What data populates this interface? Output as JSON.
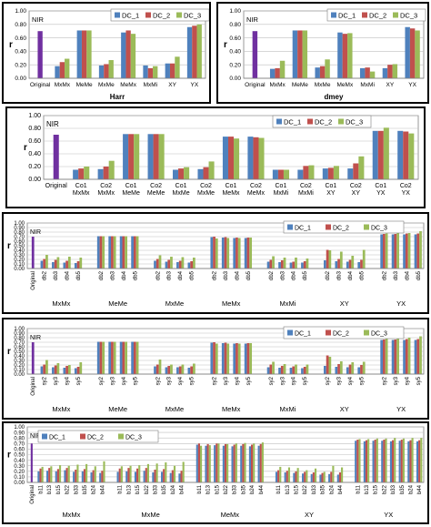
{
  "colors": {
    "original": "#7030a0",
    "DC_1": "#4f81bd",
    "DC_2": "#c0504d",
    "DC_3": "#9bbb59"
  },
  "chart_data": [
    {
      "type": "bar",
      "tag": "NIR",
      "xlabel": "Harr",
      "ylabel": "r",
      "ylim": [
        0,
        1
      ],
      "yticks": [
        "0.00",
        "0.20",
        "0.40",
        "0.60",
        "0.80",
        "1.00"
      ],
      "legend": "top-right",
      "original": {
        "label": "Original",
        "value": 0.7
      },
      "categories": [
        {
          "label": "MxMx"
        },
        {
          "label": "MeMe"
        },
        {
          "label": "MxMe"
        },
        {
          "label": "MeMx"
        },
        {
          "label": "MxMi"
        },
        {
          "label": "XY"
        },
        {
          "label": "YX"
        }
      ],
      "series": [
        {
          "name": "DC_1",
          "values": [
            0.18,
            0.71,
            0.19,
            0.68,
            0.19,
            0.22,
            0.76
          ]
        },
        {
          "name": "DC_2",
          "values": [
            0.24,
            0.71,
            0.21,
            0.71,
            0.15,
            0.22,
            0.78
          ]
        },
        {
          "name": "DC_3",
          "values": [
            0.29,
            0.71,
            0.27,
            0.66,
            0.18,
            0.32,
            0.8
          ]
        }
      ]
    },
    {
      "type": "bar",
      "tag": "NIR",
      "xlabel": "dmey",
      "ylabel": "r",
      "ylim": [
        0,
        1
      ],
      "yticks": [
        "0.00",
        "0.20",
        "0.40",
        "0.60",
        "0.80",
        "1.00"
      ],
      "legend": "top-right",
      "original": {
        "label": "Original",
        "value": 0.7
      },
      "categories": [
        {
          "label": "MxMx"
        },
        {
          "label": "MeMe"
        },
        {
          "label": "MxMe"
        },
        {
          "label": "MeMx"
        },
        {
          "label": "MxMi"
        },
        {
          "label": "XY"
        },
        {
          "label": "YX"
        }
      ],
      "series": [
        {
          "name": "DC_1",
          "values": [
            0.14,
            0.71,
            0.16,
            0.68,
            0.15,
            0.15,
            0.76
          ]
        },
        {
          "name": "DC_2",
          "values": [
            0.15,
            0.71,
            0.18,
            0.66,
            0.16,
            0.2,
            0.74
          ]
        },
        {
          "name": "DC_3",
          "values": [
            0.26,
            0.71,
            0.28,
            0.67,
            0.1,
            0.21,
            0.71
          ]
        }
      ]
    },
    {
      "type": "bar",
      "tag": "NIR",
      "xlabel": "",
      "ylabel": "r",
      "ylim": [
        0,
        1
      ],
      "yticks": [
        "0.00",
        "0.20",
        "0.40",
        "0.60",
        "0.80",
        "1.00"
      ],
      "legend": "top-right",
      "original": {
        "label": "Original",
        "value": 0.7
      },
      "categories": [
        {
          "label": "Co1 MxMx"
        },
        {
          "label": "Co2 MxMx"
        },
        {
          "label": "Co1 MeMe"
        },
        {
          "label": "Co2 MeMe"
        },
        {
          "label": "Co1 MxMe"
        },
        {
          "label": "Co2 MxMe"
        },
        {
          "label": "Co1 MeMx"
        },
        {
          "label": "Co2 MeMx"
        },
        {
          "label": "Co1 MxMi"
        },
        {
          "label": "Co2 MxMi"
        },
        {
          "label": "Co1 XY"
        },
        {
          "label": "Co2 XY"
        },
        {
          "label": "Co1 YX"
        },
        {
          "label": "Co2 YX"
        }
      ],
      "series": [
        {
          "name": "DC_1",
          "values": [
            0.15,
            0.16,
            0.71,
            0.71,
            0.15,
            0.16,
            0.67,
            0.67,
            0.15,
            0.15,
            0.17,
            0.17,
            0.76,
            0.76
          ]
        },
        {
          "name": "DC_2",
          "values": [
            0.17,
            0.2,
            0.71,
            0.71,
            0.17,
            0.19,
            0.67,
            0.66,
            0.15,
            0.21,
            0.18,
            0.25,
            0.76,
            0.75
          ]
        },
        {
          "name": "DC_3",
          "values": [
            0.2,
            0.29,
            0.71,
            0.71,
            0.19,
            0.28,
            0.64,
            0.65,
            0.15,
            0.22,
            0.21,
            0.36,
            0.81,
            0.72
          ]
        }
      ]
    },
    {
      "type": "bar",
      "tag": "NIR",
      "xlabel": "",
      "ylabel": "r",
      "ylim": [
        0,
        1
      ],
      "yticks": [
        "0.00",
        "0.10",
        "0.20",
        "0.30",
        "0.40",
        "0.50",
        "0.60",
        "0.70",
        "0.80",
        "0.90",
        "1.00"
      ],
      "legend": "top-right",
      "original": {
        "label": "Original",
        "value": 0.7
      },
      "groups": [
        "MxMx",
        "MeMe",
        "MxMe",
        "MeMx",
        "MxMi",
        "XY",
        "YX"
      ],
      "group_sizes": [
        4,
        4,
        4,
        4,
        4,
        4,
        4
      ],
      "categories": [
        {
          "label": "db2"
        },
        {
          "label": "db3"
        },
        {
          "label": "db4"
        },
        {
          "label": "db5"
        },
        {
          "label": "db2"
        },
        {
          "label": "db3"
        },
        {
          "label": "db4"
        },
        {
          "label": "db5"
        },
        {
          "label": "db2"
        },
        {
          "label": "db3"
        },
        {
          "label": "db4"
        },
        {
          "label": "db5"
        },
        {
          "label": "db2"
        },
        {
          "label": "db3"
        },
        {
          "label": "db4"
        },
        {
          "label": "db5"
        },
        {
          "label": "db2"
        },
        {
          "label": "db3"
        },
        {
          "label": "db4"
        },
        {
          "label": "db5"
        },
        {
          "label": "db2"
        },
        {
          "label": "db3"
        },
        {
          "label": "db4"
        },
        {
          "label": "db5"
        },
        {
          "label": "db2"
        },
        {
          "label": "db3"
        },
        {
          "label": "db4"
        },
        {
          "label": "db5"
        }
      ],
      "series": [
        {
          "name": "DC_1",
          "values": [
            0.17,
            0.14,
            0.13,
            0.12,
            0.71,
            0.71,
            0.71,
            0.71,
            0.17,
            0.15,
            0.14,
            0.13,
            0.69,
            0.68,
            0.67,
            0.67,
            0.15,
            0.14,
            0.13,
            0.13,
            0.18,
            0.16,
            0.15,
            0.14,
            0.75,
            0.75,
            0.75,
            0.75
          ]
        },
        {
          "name": "DC_2",
          "values": [
            0.21,
            0.19,
            0.17,
            0.16,
            0.71,
            0.71,
            0.71,
            0.71,
            0.21,
            0.19,
            0.17,
            0.16,
            0.7,
            0.69,
            0.68,
            0.68,
            0.19,
            0.18,
            0.15,
            0.16,
            0.41,
            0.21,
            0.19,
            0.19,
            0.76,
            0.76,
            0.77,
            0.77
          ]
        },
        {
          "name": "DC_3",
          "values": [
            0.3,
            0.25,
            0.26,
            0.24,
            0.71,
            0.71,
            0.71,
            0.71,
            0.29,
            0.26,
            0.25,
            0.24,
            0.66,
            0.67,
            0.67,
            0.68,
            0.27,
            0.24,
            0.24,
            0.22,
            0.4,
            0.37,
            0.28,
            0.41,
            0.77,
            0.8,
            0.78,
            0.82
          ]
        }
      ]
    },
    {
      "type": "bar",
      "tag": "NIR",
      "xlabel": "",
      "ylabel": "r",
      "ylim": [
        0,
        1
      ],
      "yticks": [
        "0.00",
        "0.10",
        "0.20",
        "0.30",
        "0.40",
        "0.50",
        "0.60",
        "0.70",
        "0.80",
        "0.90",
        "1.00"
      ],
      "legend": "top-right",
      "original": {
        "label": "Original",
        "value": 0.7
      },
      "groups": [
        "MxMx",
        "MeMe",
        "MxMe",
        "MeMx",
        "MxMi",
        "XY",
        "YX"
      ],
      "group_sizes": [
        4,
        4,
        4,
        4,
        4,
        4,
        4
      ],
      "categories": [
        {
          "label": "sy2"
        },
        {
          "label": "sy3"
        },
        {
          "label": "sy4"
        },
        {
          "label": "sy5"
        },
        {
          "label": "sy2"
        },
        {
          "label": "sy3"
        },
        {
          "label": "sy4"
        },
        {
          "label": "sy5"
        },
        {
          "label": "sy2"
        },
        {
          "label": "sy3"
        },
        {
          "label": "sy4"
        },
        {
          "label": "sy5"
        },
        {
          "label": "sy2"
        },
        {
          "label": "sy3"
        },
        {
          "label": "sy4"
        },
        {
          "label": "sy5"
        },
        {
          "label": "sy2"
        },
        {
          "label": "sy3"
        },
        {
          "label": "sy4"
        },
        {
          "label": "sy5"
        },
        {
          "label": "sy2"
        },
        {
          "label": "sy3"
        },
        {
          "label": "sy4"
        },
        {
          "label": "sy5"
        },
        {
          "label": "sy2"
        },
        {
          "label": "sy3"
        },
        {
          "label": "sy4"
        },
        {
          "label": "sy5"
        }
      ],
      "series": [
        {
          "name": "DC_1",
          "values": [
            0.17,
            0.15,
            0.14,
            0.13,
            0.71,
            0.71,
            0.71,
            0.71,
            0.17,
            0.15,
            0.15,
            0.14,
            0.69,
            0.68,
            0.67,
            0.67,
            0.15,
            0.14,
            0.14,
            0.13,
            0.18,
            0.16,
            0.15,
            0.15,
            0.75,
            0.75,
            0.75,
            0.75
          ]
        },
        {
          "name": "DC_2",
          "values": [
            0.21,
            0.19,
            0.18,
            0.16,
            0.71,
            0.71,
            0.71,
            0.71,
            0.21,
            0.18,
            0.17,
            0.17,
            0.7,
            0.69,
            0.68,
            0.68,
            0.21,
            0.18,
            0.17,
            0.16,
            0.41,
            0.22,
            0.21,
            0.2,
            0.76,
            0.76,
            0.77,
            0.77
          ]
        },
        {
          "name": "DC_3",
          "values": [
            0.31,
            0.24,
            0.2,
            0.26,
            0.71,
            0.71,
            0.71,
            0.71,
            0.32,
            0.21,
            0.21,
            0.23,
            0.67,
            0.67,
            0.67,
            0.68,
            0.27,
            0.22,
            0.21,
            0.21,
            0.38,
            0.28,
            0.26,
            0.27,
            0.78,
            0.82,
            0.8,
            0.83
          ]
        }
      ]
    },
    {
      "type": "bar",
      "tag": "NIR",
      "xlabel": "",
      "ylabel": "r",
      "ylim": [
        0,
        1
      ],
      "yticks": [
        "0.00",
        "0.10",
        "0.20",
        "0.30",
        "0.40",
        "0.50",
        "0.60",
        "0.70",
        "0.80",
        "0.90",
        "1.00"
      ],
      "legend": "top-left",
      "original": {
        "label": "Original",
        "value": 0.7
      },
      "groups": [
        "MxMx",
        "MxMe",
        "MeMx",
        "XY",
        "YX"
      ],
      "group_sizes": [
        8,
        8,
        8,
        8,
        8
      ],
      "categories": [
        {
          "label": "b11"
        },
        {
          "label": "b13"
        },
        {
          "label": "b15"
        },
        {
          "label": "b22"
        },
        {
          "label": "b33"
        },
        {
          "label": "b35"
        },
        {
          "label": "b24"
        },
        {
          "label": "b44"
        },
        {
          "label": "b11"
        },
        {
          "label": "b13"
        },
        {
          "label": "b15"
        },
        {
          "label": "b22"
        },
        {
          "label": "b33"
        },
        {
          "label": "b35"
        },
        {
          "label": "b24"
        },
        {
          "label": "b44"
        },
        {
          "label": "b11"
        },
        {
          "label": "b13"
        },
        {
          "label": "b15"
        },
        {
          "label": "b22"
        },
        {
          "label": "b33"
        },
        {
          "label": "b35"
        },
        {
          "label": "b24"
        },
        {
          "label": "b44"
        },
        {
          "label": "b11"
        },
        {
          "label": "b13"
        },
        {
          "label": "b15"
        },
        {
          "label": "b22"
        },
        {
          "label": "b33"
        },
        {
          "label": "b35"
        },
        {
          "label": "b24"
        },
        {
          "label": "b44"
        },
        {
          "label": "b11"
        },
        {
          "label": "b13"
        },
        {
          "label": "b15"
        },
        {
          "label": "b22"
        },
        {
          "label": "b33"
        },
        {
          "label": "b35"
        },
        {
          "label": "b24"
        },
        {
          "label": "b44"
        }
      ],
      "series": [
        {
          "name": "DC_1",
          "values": [
            0.2,
            0.21,
            0.2,
            0.22,
            0.19,
            0.2,
            0.18,
            0.17,
            0.19,
            0.2,
            0.19,
            0.21,
            0.18,
            0.19,
            0.17,
            0.16,
            0.68,
            0.66,
            0.67,
            0.66,
            0.65,
            0.66,
            0.65,
            0.66,
            0.19,
            0.18,
            0.17,
            0.16,
            0.15,
            0.14,
            0.15,
            0.14,
            0.75,
            0.74,
            0.75,
            0.75,
            0.74,
            0.75,
            0.74,
            0.74
          ]
        },
        {
          "name": "DC_2",
          "values": [
            0.25,
            0.26,
            0.24,
            0.26,
            0.23,
            0.24,
            0.22,
            0.21,
            0.25,
            0.26,
            0.25,
            0.26,
            0.23,
            0.24,
            0.22,
            0.21,
            0.7,
            0.69,
            0.7,
            0.69,
            0.68,
            0.69,
            0.68,
            0.69,
            0.22,
            0.21,
            0.2,
            0.19,
            0.18,
            0.17,
            0.19,
            0.18,
            0.77,
            0.76,
            0.77,
            0.77,
            0.76,
            0.77,
            0.76,
            0.76
          ]
        },
        {
          "name": "DC_3",
          "values": [
            0.28,
            0.29,
            0.31,
            0.3,
            0.32,
            0.33,
            0.29,
            0.38,
            0.29,
            0.3,
            0.31,
            0.33,
            0.34,
            0.36,
            0.3,
            0.37,
            0.66,
            0.67,
            0.7,
            0.69,
            0.7,
            0.71,
            0.7,
            0.72,
            0.28,
            0.27,
            0.26,
            0.22,
            0.25,
            0.19,
            0.3,
            0.27,
            0.78,
            0.78,
            0.79,
            0.79,
            0.8,
            0.79,
            0.8,
            0.8
          ]
        }
      ]
    }
  ]
}
